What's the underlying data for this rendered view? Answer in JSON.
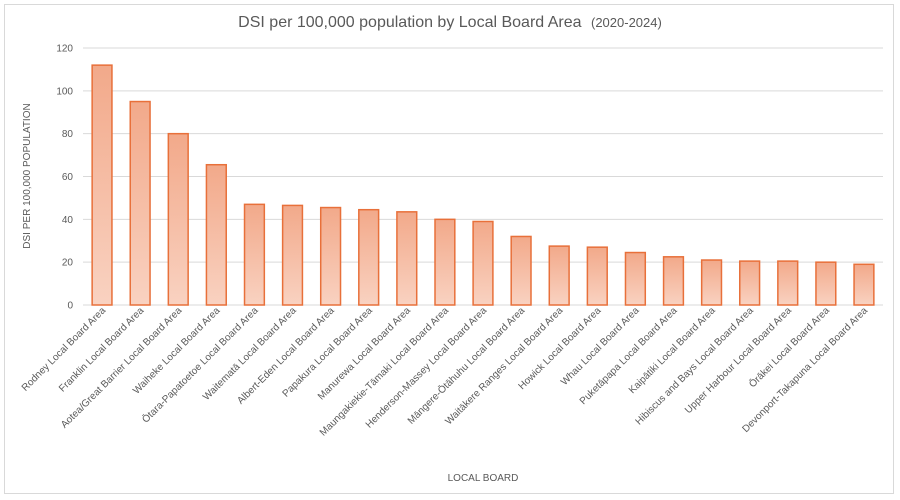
{
  "chart_data": {
    "type": "bar",
    "title": "DSI per 100,000 population by Local Board Area",
    "subtitle": "(2020-2024)",
    "xlabel": "LOCAL BOARD",
    "ylabel": "DSI PER 100,000 POPULATION",
    "ylim": [
      0,
      120
    ],
    "yticks": [
      0,
      20,
      40,
      60,
      80,
      100,
      120
    ],
    "grid": true,
    "colors": {
      "bar_fill_top": "#f2a98a",
      "bar_fill_bottom": "#f9d2c1",
      "bar_stroke": "#e8703a"
    },
    "categories": [
      "Rodney Local Board Area",
      "Franklin Local Board Area",
      "Aotea/Great Barrier Local Board Area",
      "Waiheke Local Board Area",
      "Ōtara-Papatoetoe Local Board Area",
      "Waitematā Local Board Area",
      "Albert-Eden Local Board Area",
      "Papakura Local Board Area",
      "Manurewa Local Board Area",
      "Maungakiekie-Tāmaki Local Board Area",
      "Henderson-Massey Local Board Area",
      "Māngere-Ōtāhuhu Local Board Area",
      "Waitākere Ranges Local Board Area",
      "Howick Local Board Area",
      "Whau Local Board Area",
      "Puketāpapa Local Board Area",
      "Kaipātiki Local Board Area",
      "Hibiscus and Bays Local Board Area",
      "Upper Harbour Local Board Area",
      "Ōrākei Local Board Area",
      "Devonport-Takapuna Local Board Area"
    ],
    "values": [
      112,
      95,
      80,
      65.5,
      47,
      46.5,
      45.5,
      44.5,
      43.5,
      40,
      39,
      32,
      27.5,
      27,
      24.5,
      22.5,
      21,
      20.5,
      20.5,
      20,
      19
    ]
  }
}
